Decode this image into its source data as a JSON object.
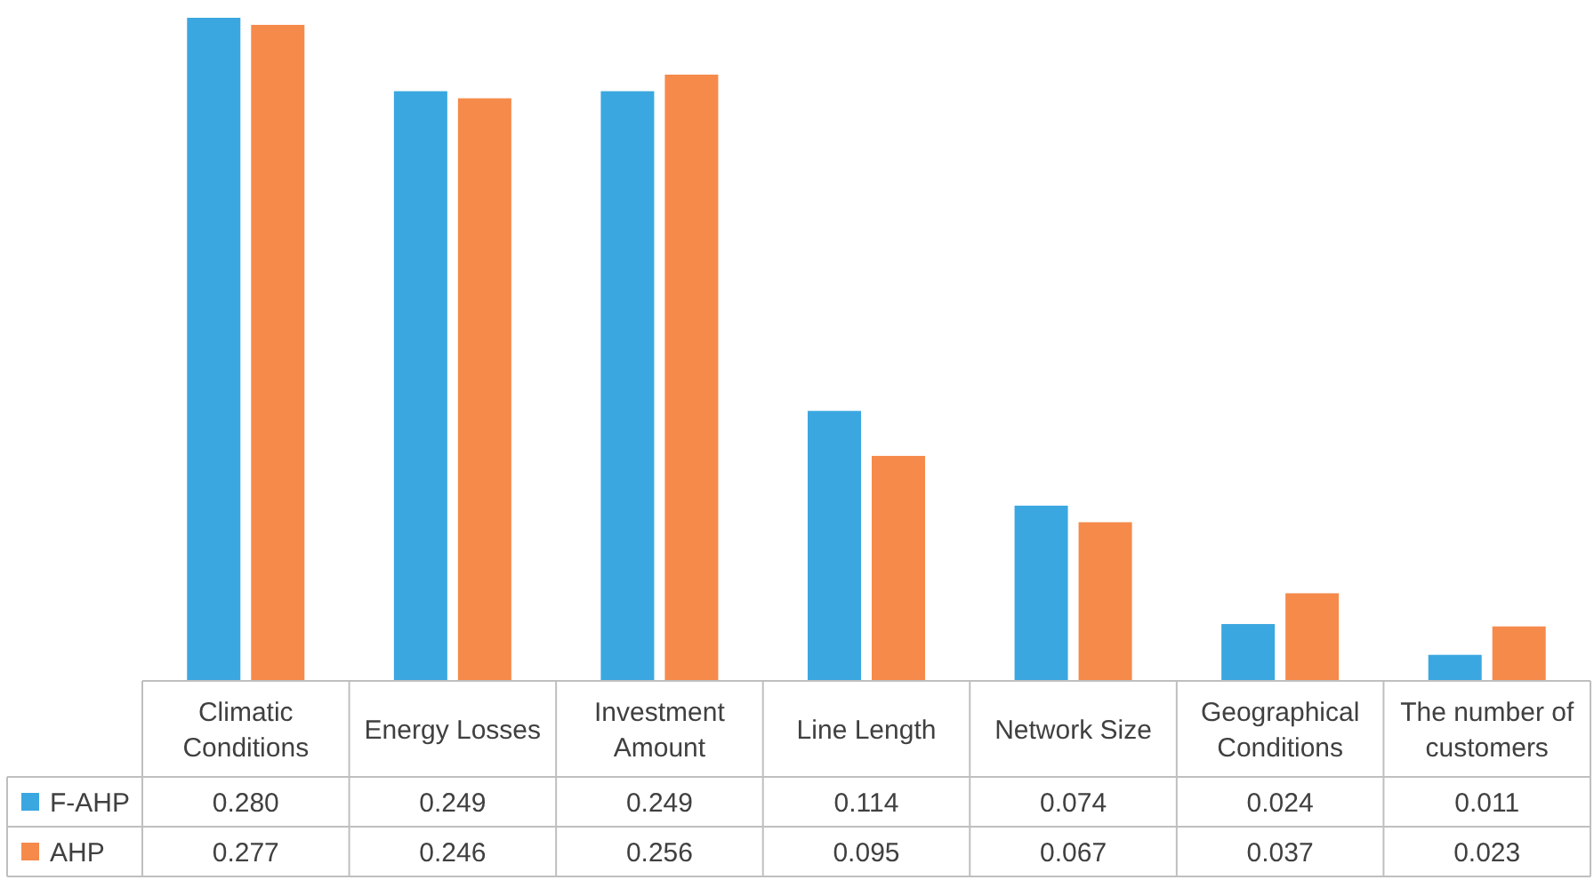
{
  "chart_data": {
    "type": "bar",
    "categories": [
      "Climatic Conditions",
      "Energy Losses",
      "Investment Amount",
      "Line Length",
      "Network Size",
      "Geographical Conditions",
      "The number of customers"
    ],
    "series": [
      {
        "name": "F-AHP",
        "color": "#3ba7e0",
        "values": [
          0.28,
          0.249,
          0.249,
          0.114,
          0.074,
          0.024,
          0.011
        ],
        "value_labels": [
          "0.280",
          "0.249",
          "0.249",
          "0.114",
          "0.074",
          "0.024",
          "0.011"
        ]
      },
      {
        "name": "AHP",
        "color": "#f58a4b",
        "values": [
          0.277,
          0.246,
          0.256,
          0.095,
          0.067,
          0.037,
          0.023
        ],
        "value_labels": [
          "0.277",
          "0.246",
          "0.256",
          "0.095",
          "0.067",
          "0.037",
          "0.023"
        ]
      }
    ],
    "legend": "bottom"
  }
}
